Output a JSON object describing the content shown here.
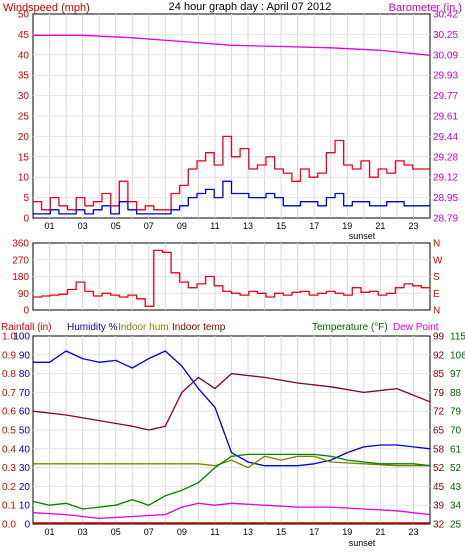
{
  "chart_data": [
    {
      "type": "line",
      "title": "24 hour graph day : April 07 2012",
      "left_axis_label": "Windspeed (mph)",
      "right_axis_label": "Barometer (in.)",
      "left_ticks": [
        "0",
        "5",
        "10",
        "15",
        "20",
        "25",
        "30",
        "35",
        "40",
        "45",
        "50"
      ],
      "right_ticks": [
        "28.79",
        "28.95",
        "29.12",
        "29.28",
        "29.44",
        "29.61",
        "29.77",
        "29.93",
        "30.09",
        "30.25",
        "30.42"
      ],
      "x_tick_labels": [
        "01",
        "03",
        "05",
        "07",
        "09",
        "11",
        "13",
        "15",
        "17",
        "19",
        "21",
        "23"
      ],
      "marker_label": "sunset",
      "ylim": [
        0,
        50
      ],
      "y2lim": [
        28.79,
        30.42
      ],
      "grid": true,
      "colors": {
        "wind_gust": "#e8001c",
        "wind_avg": "#0000cc",
        "barometer": "#e000e0",
        "left_axis": "#cc0000",
        "right_axis": "#cc00cc"
      },
      "series": [
        {
          "values": [
            4,
            2,
            5,
            3,
            2,
            5,
            3,
            4,
            6,
            3,
            9,
            4,
            2,
            3,
            2,
            2,
            6,
            8,
            12,
            14,
            16,
            13,
            20,
            15,
            17,
            12,
            13,
            15,
            12,
            11,
            9,
            12,
            10,
            11,
            16,
            19,
            13,
            12,
            14,
            10,
            12,
            11,
            14,
            13,
            12,
            12
          ]
        },
        {
          "values": [
            1,
            1,
            2,
            1,
            1,
            2,
            1,
            2,
            3,
            1,
            4,
            2,
            1,
            1,
            1,
            1,
            2,
            3,
            5,
            6,
            7,
            5,
            9,
            6,
            6,
            5,
            5,
            6,
            5,
            3,
            3,
            4,
            4,
            3,
            5,
            6,
            3,
            4,
            4,
            3,
            3,
            4,
            4,
            3,
            3,
            3
          ]
        },
        {
          "axis": "right",
          "x": [
            0,
            3,
            6,
            9,
            12,
            15,
            18,
            21,
            24
          ],
          "values": [
            30.25,
            30.25,
            30.23,
            30.2,
            30.17,
            30.16,
            30.15,
            30.13,
            30.09
          ]
        }
      ]
    },
    {
      "type": "line",
      "left_ticks": [
        "0",
        "90",
        "180",
        "270",
        "360"
      ],
      "right_ticks": [
        "N",
        "E",
        "S",
        "W",
        "N"
      ],
      "ylim": [
        0,
        360
      ],
      "colors": {
        "direction": "#e8001c",
        "left_axis": "#cc0000",
        "right_axis": "#cc0000"
      },
      "series": [
        {
          "values": [
            70,
            75,
            80,
            85,
            110,
            150,
            100,
            75,
            90,
            80,
            70,
            80,
            60,
            20,
            320,
            310,
            200,
            150,
            120,
            140,
            180,
            130,
            100,
            90,
            80,
            100,
            90,
            70,
            90,
            80,
            95,
            100,
            80,
            90,
            100,
            90,
            80,
            120,
            95,
            100,
            80,
            90,
            120,
            140,
            130,
            120
          ]
        }
      ]
    },
    {
      "type": "line",
      "left_axis_labels": [
        "Rainfall (in)",
        "Humidity %",
        "Indoor hum",
        "Indoor temp"
      ],
      "right_axis_labels": [
        "Temperature (°F)",
        "Dew Point"
      ],
      "rain_ticks": [
        "0.0",
        "0.1",
        "0.2",
        "0.3",
        "0.4",
        "0.5",
        "0.6",
        "0.7",
        "0.8",
        "0.9",
        "1.0"
      ],
      "humidity_ticks": [
        "0",
        "10",
        "20",
        "30",
        "40",
        "50",
        "60",
        "70",
        "80",
        "90",
        "100"
      ],
      "temp_ticks": [
        "32",
        "39",
        "45",
        "52",
        "58",
        "65",
        "72",
        "79",
        "85",
        "92",
        "99"
      ],
      "dew_ticks": [
        "25",
        "34",
        "43",
        "52",
        "61",
        "70",
        "79",
        "88",
        "97",
        "106",
        "115"
      ],
      "x_tick_labels": [
        "01",
        "03",
        "05",
        "07",
        "09",
        "11",
        "13",
        "15",
        "17",
        "19",
        "21",
        "23"
      ],
      "marker_label": "sunset",
      "ylim": [
        0,
        100
      ],
      "grid": true,
      "colors": {
        "humidity": "#0000cc",
        "indoor_temp": "#800040",
        "indoor_hum": "#808000",
        "temperature": "#008000",
        "dew_point": "#e000e0",
        "rain_axis": "#cc0000",
        "humidity_axis": "#0000aa",
        "indoor_axis": "#808000",
        "temp_axis": "#800000",
        "dew_axis": "#006400"
      },
      "series": [
        {
          "axis": "humidity",
          "x": [
            0,
            1,
            2,
            3,
            4,
            5,
            6,
            7,
            8,
            9,
            10,
            11,
            12,
            13,
            14,
            15,
            16,
            17,
            18,
            19,
            20,
            21,
            22,
            23,
            24
          ],
          "values": [
            86,
            86,
            92,
            88,
            86,
            87,
            83,
            88,
            92,
            84,
            72,
            62,
            38,
            33,
            31,
            31,
            31,
            32,
            34,
            38,
            41,
            42,
            42,
            41,
            40
          ]
        },
        {
          "axis": "humidity",
          "x": [
            0,
            2,
            4,
            6,
            7,
            8,
            9,
            10,
            11,
            12,
            14,
            16,
            18,
            20,
            22,
            24
          ],
          "values": [
            60,
            58,
            55,
            52,
            50,
            52,
            70,
            78,
            72,
            80,
            78,
            75,
            73,
            70,
            72,
            65
          ]
        },
        {
          "axis": "humidity",
          "x": [
            0,
            2,
            4,
            6,
            8,
            10,
            11,
            12,
            13,
            14,
            15,
            16,
            17,
            18,
            20,
            22,
            24
          ],
          "values": [
            32,
            32,
            32,
            32,
            32,
            32,
            31,
            34,
            30,
            36,
            34,
            36,
            36,
            33,
            32,
            31,
            31
          ]
        },
        {
          "axis": "humidity",
          "x": [
            0,
            1,
            2,
            3,
            4,
            5,
            6,
            7,
            8,
            9,
            10,
            11,
            12,
            13,
            14,
            15,
            16,
            17,
            18,
            19,
            20,
            21,
            22,
            23,
            24
          ],
          "values": [
            12,
            10,
            11,
            8,
            9,
            10,
            13,
            10,
            15,
            18,
            22,
            30,
            36,
            37,
            37,
            37,
            37,
            37,
            36,
            34,
            33,
            32,
            32,
            32,
            31
          ]
        },
        {
          "axis": "humidity",
          "x": [
            0,
            2,
            4,
            6,
            8,
            9,
            10,
            11,
            12,
            14,
            16,
            18,
            20,
            22,
            24
          ],
          "values": [
            6,
            5,
            3,
            4,
            5,
            9,
            11,
            10,
            11,
            10,
            9,
            9,
            8,
            7,
            5
          ]
        }
      ]
    }
  ]
}
